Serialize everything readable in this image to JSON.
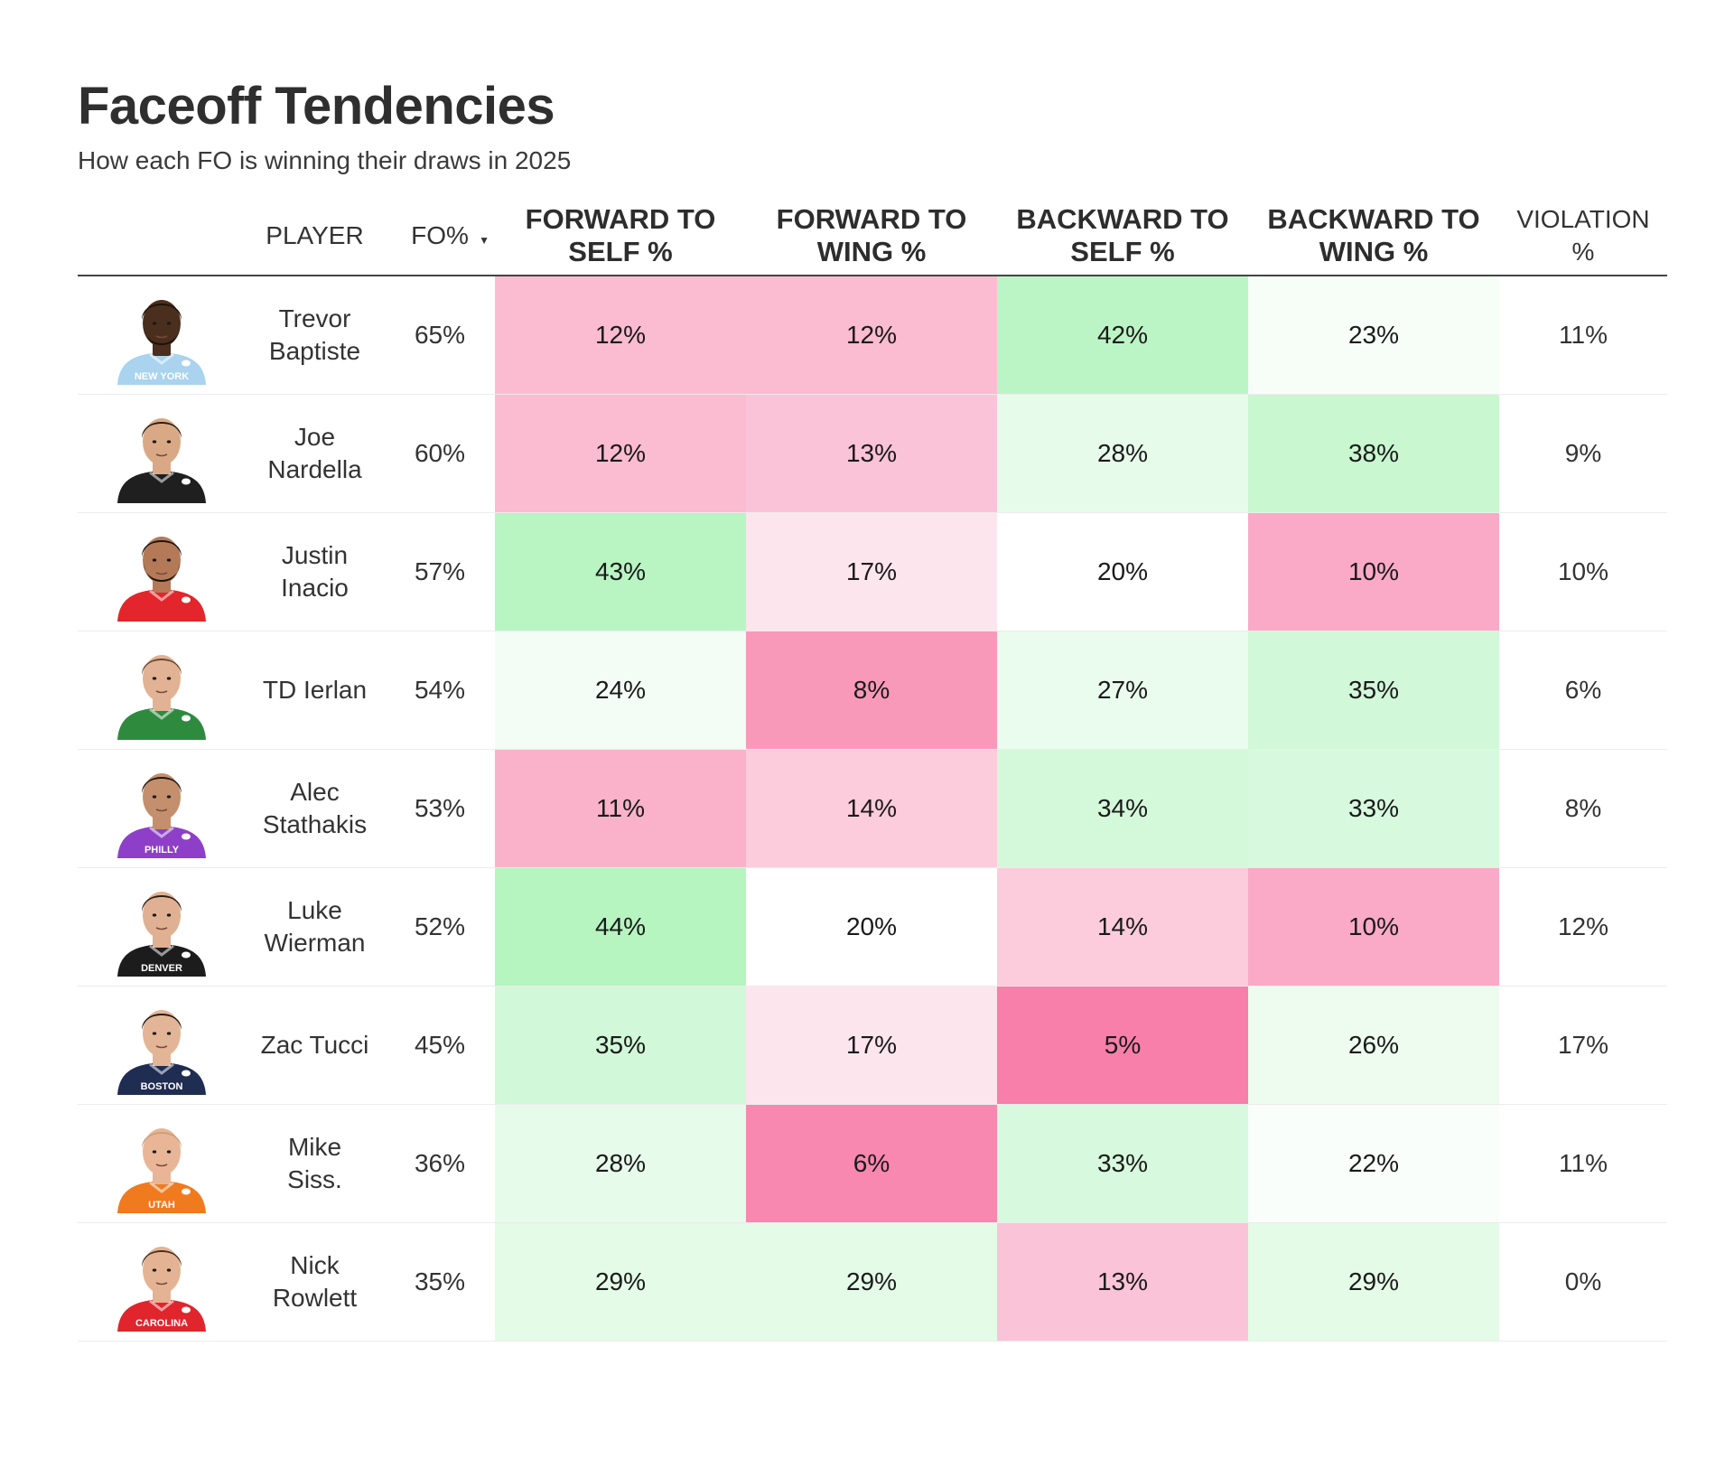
{
  "header": {
    "title": "Faceoff Tendencies",
    "subtitle": "How each FO is winning their draws in 2025"
  },
  "columns": {
    "player": "PLAYER",
    "fo": "FO%",
    "sort_indicator": "▼",
    "fwd_self": [
      "FORWARD TO",
      "SELF %"
    ],
    "fwd_wing": [
      "FORWARD TO",
      "WING %"
    ],
    "bwd_self": [
      "BACKWARD TO",
      "SELF %"
    ],
    "bwd_wing": [
      "BACKWARD TO",
      "WING %"
    ],
    "violation": [
      "VIOLATION",
      "%"
    ]
  },
  "colors": {
    "low": "#f77fa9",
    "mid": "#ffffff",
    "high": "#b6f4c0"
  },
  "chart_data": {
    "type": "table",
    "title": "Faceoff Tendencies",
    "subtitle": "How each FO is winning their draws in 2025",
    "rows": [
      {
        "player": [
          "Trevor",
          "Baptiste"
        ],
        "fo": "65%",
        "fwd_self": 12,
        "fwd_wing": 12,
        "bwd_self": 42,
        "bwd_wing": 23,
        "violation": "11%",
        "jersey": "#a9d3ee",
        "skin": "#4a2e1e",
        "hair": "#1c1208",
        "beard": true,
        "jersey_text": "NEW YORK"
      },
      {
        "player": [
          "Joe",
          "Nardella"
        ],
        "fo": "60%",
        "fwd_self": 12,
        "fwd_wing": 13,
        "bwd_self": 28,
        "bwd_wing": 38,
        "violation": "9%",
        "jersey": "#1f1f1f",
        "skin": "#d9a986",
        "hair": "#2a1c12",
        "beard": false,
        "jersey_text": ""
      },
      {
        "player": [
          "Justin",
          "Inacio"
        ],
        "fo": "57%",
        "fwd_self": 43,
        "fwd_wing": 17,
        "bwd_self": 20,
        "bwd_wing": 10,
        "violation": "10%",
        "jersey": "#e3262b",
        "skin": "#b47a58",
        "hair": "#1a120c",
        "beard": true,
        "jersey_text": ""
      },
      {
        "player": [
          "TD Ierlan"
        ],
        "fo": "54%",
        "fwd_self": 24,
        "fwd_wing": 8,
        "bwd_self": 27,
        "bwd_wing": 35,
        "violation": "6%",
        "jersey": "#2e8b3e",
        "skin": "#e2b294",
        "hair": "#6b4a2e",
        "beard": false,
        "jersey_text": ""
      },
      {
        "player": [
          "Alec",
          "Stathakis"
        ],
        "fo": "53%",
        "fwd_self": 11,
        "fwd_wing": 14,
        "bwd_self": 34,
        "bwd_wing": 33,
        "violation": "8%",
        "jersey": "#8e3fc8",
        "skin": "#c48f6c",
        "hair": "#1f1610",
        "beard": false,
        "jersey_text": "PHILLY"
      },
      {
        "player": [
          "Luke",
          "Wierman"
        ],
        "fo": "52%",
        "fwd_self": 44,
        "fwd_wing": 20,
        "bwd_self": 14,
        "bwd_wing": 10,
        "violation": "12%",
        "jersey": "#1c1c1c",
        "skin": "#e0b092",
        "hair": "#2b1d14",
        "beard": false,
        "jersey_text": "DENVER"
      },
      {
        "player": [
          "Zac Tucci"
        ],
        "fo": "45%",
        "fwd_self": 35,
        "fwd_wing": 17,
        "bwd_self": 5,
        "bwd_wing": 26,
        "violation": "17%",
        "jersey": "#1f2d52",
        "skin": "#e3b597",
        "hair": "#1e1510",
        "beard": false,
        "jersey_text": "BOSTON"
      },
      {
        "player": [
          "Mike",
          "Siss."
        ],
        "fo": "36%",
        "fwd_self": 28,
        "fwd_wing": 6,
        "bwd_self": 33,
        "bwd_wing": 22,
        "violation": "11%",
        "jersey": "#f07a1e",
        "skin": "#e8b597",
        "hair": "#c9a074",
        "beard": false,
        "jersey_text": "UTAH"
      },
      {
        "player": [
          "Nick",
          "Rowlett"
        ],
        "fo": "35%",
        "fwd_self": 29,
        "fwd_wing": 29,
        "bwd_self": 13,
        "bwd_wing": 29,
        "violation": "0%",
        "jersey": "#e1252c",
        "skin": "#e4b393",
        "hair": "#4a3020",
        "beard": false,
        "jersey_text": "CAROLINA"
      }
    ]
  }
}
